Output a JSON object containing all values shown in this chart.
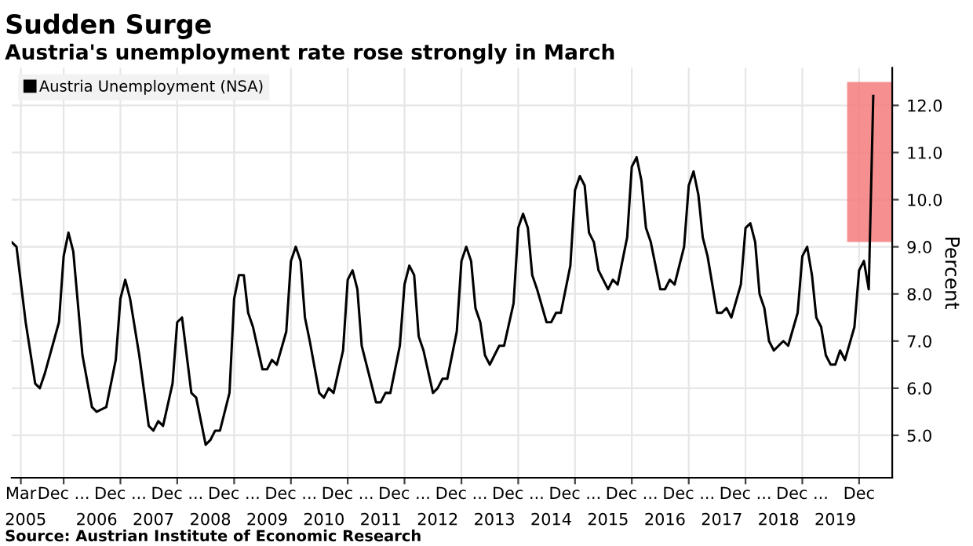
{
  "chart_data": {
    "type": "line",
    "title": "Sudden Surge",
    "subtitle": "Austria's unemployment rate rose strongly in March",
    "ylabel": "Percent",
    "annotations": [
      "Source: Austrian Institute of Economic Research"
    ],
    "series": [
      {
        "name": "Austria Unemployment (NSA)",
        "color": "#000000",
        "x": [
          "2005-01",
          "2005-02",
          "2005-04",
          "2005-06",
          "2005-07",
          "2005-08",
          "2005-11",
          "2005-12",
          "2006-01",
          "2006-02",
          "2006-04",
          "2006-06",
          "2006-07",
          "2006-09",
          "2006-11",
          "2006-12",
          "2007-01",
          "2007-02",
          "2007-04",
          "2007-06",
          "2007-07",
          "2007-08",
          "2007-09",
          "2007-11",
          "2007-12",
          "2008-01",
          "2008-03",
          "2008-04",
          "2008-06",
          "2008-07",
          "2008-08",
          "2008-09",
          "2008-11",
          "2008-12",
          "2009-01",
          "2009-02",
          "2009-03",
          "2009-04",
          "2009-06",
          "2009-07",
          "2009-08",
          "2009-09",
          "2009-11",
          "2009-12",
          "2010-01",
          "2010-02",
          "2010-03",
          "2010-04",
          "2010-06",
          "2010-07",
          "2010-08",
          "2010-09",
          "2010-11",
          "2010-12",
          "2011-01",
          "2011-02",
          "2011-03",
          "2011-06",
          "2011-07",
          "2011-08",
          "2011-09",
          "2011-11",
          "2011-12",
          "2012-01",
          "2012-02",
          "2012-03",
          "2012-04",
          "2012-06",
          "2012-07",
          "2012-08",
          "2012-09",
          "2012-11",
          "2012-12",
          "2013-01",
          "2013-02",
          "2013-03",
          "2013-04",
          "2013-05",
          "2013-06",
          "2013-08",
          "2013-09",
          "2013-11",
          "2013-12",
          "2014-01",
          "2014-02",
          "2014-03",
          "2014-04",
          "2014-06",
          "2014-07",
          "2014-08",
          "2014-09",
          "2014-11",
          "2014-12",
          "2015-01",
          "2015-02",
          "2015-03",
          "2015-04",
          "2015-05",
          "2015-07",
          "2015-08",
          "2015-09",
          "2015-11",
          "2015-12",
          "2016-01",
          "2016-02",
          "2016-03",
          "2016-04",
          "2016-06",
          "2016-07",
          "2016-08",
          "2016-09",
          "2016-11",
          "2016-12",
          "2017-01",
          "2017-02",
          "2017-03",
          "2017-04",
          "2017-06",
          "2017-07",
          "2017-08",
          "2017-09",
          "2017-11",
          "2017-12",
          "2018-01",
          "2018-02",
          "2018-03",
          "2018-04",
          "2018-05",
          "2018-06",
          "2018-08",
          "2018-09",
          "2018-11",
          "2018-12",
          "2019-01",
          "2019-02",
          "2019-03",
          "2019-04",
          "2019-05",
          "2019-06",
          "2019-07",
          "2019-08",
          "2019-09",
          "2019-11",
          "2019-12",
          "2020-01",
          "2020-02",
          "2020-03"
        ],
        "values": [
          9.1,
          9.0,
          7.4,
          6.1,
          6.0,
          6.3,
          7.4,
          8.8,
          9.3,
          8.9,
          6.7,
          5.6,
          5.5,
          5.6,
          6.6,
          7.9,
          8.3,
          7.9,
          6.7,
          5.2,
          5.1,
          5.3,
          5.2,
          6.1,
          7.4,
          7.5,
          5.9,
          5.8,
          4.8,
          4.9,
          5.1,
          5.1,
          5.9,
          7.9,
          8.4,
          8.4,
          7.6,
          7.3,
          6.4,
          6.4,
          6.6,
          6.5,
          7.2,
          8.7,
          9.0,
          8.7,
          7.5,
          7.0,
          5.9,
          5.8,
          6.0,
          5.9,
          6.8,
          8.3,
          8.5,
          8.1,
          6.9,
          5.7,
          5.7,
          5.9,
          5.9,
          6.9,
          8.2,
          8.6,
          8.4,
          7.1,
          6.8,
          5.9,
          6.0,
          6.2,
          6.2,
          7.2,
          8.7,
          9.0,
          8.7,
          7.7,
          7.4,
          6.7,
          6.5,
          6.9,
          6.9,
          7.8,
          9.4,
          9.7,
          9.4,
          8.4,
          8.1,
          7.4,
          7.4,
          7.6,
          7.6,
          8.6,
          10.2,
          10.5,
          10.3,
          9.3,
          9.1,
          8.5,
          8.1,
          8.3,
          8.2,
          9.2,
          10.7,
          10.9,
          10.4,
          9.4,
          9.1,
          8.1,
          8.1,
          8.3,
          8.2,
          9.0,
          10.3,
          10.6,
          10.1,
          9.2,
          8.8,
          7.6,
          7.6,
          7.7,
          7.5,
          8.2,
          9.4,
          9.5,
          9.1,
          8.0,
          7.7,
          7.0,
          6.8,
          7.0,
          6.9,
          7.6,
          8.8,
          9.0,
          8.4,
          7.5,
          7.3,
          6.7,
          6.5,
          6.5,
          6.8,
          6.6,
          7.3,
          8.5,
          8.7,
          8.1,
          12.2
        ]
      }
    ],
    "xlim": [
      "2005-01-01",
      "2020-07-01"
    ],
    "xticks": [
      {
        "value": "2005-03-01",
        "label": "Mar"
      },
      {
        "value": "2005-12-01",
        "label": "Dec ..."
      },
      {
        "value": "2006-12-01",
        "label": "Dec ..."
      },
      {
        "value": "2007-12-01",
        "label": "Dec ..."
      },
      {
        "value": "2008-12-01",
        "label": "Dec ..."
      },
      {
        "value": "2009-12-01",
        "label": "Dec ..."
      },
      {
        "value": "2010-12-01",
        "label": "Dec ..."
      },
      {
        "value": "2011-12-01",
        "label": "Dec ..."
      },
      {
        "value": "2012-12-01",
        "label": "Dec ..."
      },
      {
        "value": "2013-12-01",
        "label": "Dec ..."
      },
      {
        "value": "2014-12-01",
        "label": "Dec ..."
      },
      {
        "value": "2015-12-01",
        "label": "Dec ..."
      },
      {
        "value": "2016-12-01",
        "label": "Dec ..."
      },
      {
        "value": "2017-12-01",
        "label": "Dec ..."
      },
      {
        "value": "2018-12-01",
        "label": "Dec ..."
      },
      {
        "value": "2019-12-01",
        "label": "Dec"
      }
    ],
    "x2lim": [
      "2005-01-01",
      "2020-07-01"
    ],
    "x2ticks": [
      {
        "value": "2005-04-01",
        "label": "2005"
      },
      {
        "value": "2006-07-01",
        "label": "2006"
      },
      {
        "value": "2007-07-01",
        "label": "2007"
      },
      {
        "value": "2008-07-01",
        "label": "2008"
      },
      {
        "value": "2009-07-01",
        "label": "2009"
      },
      {
        "value": "2010-07-01",
        "label": "2010"
      },
      {
        "value": "2011-07-01",
        "label": "2011"
      },
      {
        "value": "2012-07-01",
        "label": "2012"
      },
      {
        "value": "2013-07-01",
        "label": "2013"
      },
      {
        "value": "2014-07-01",
        "label": "2014"
      },
      {
        "value": "2015-07-01",
        "label": "2015"
      },
      {
        "value": "2016-07-01",
        "label": "2016"
      },
      {
        "value": "2017-07-01",
        "label": "2017"
      },
      {
        "value": "2018-07-01",
        "label": "2018"
      },
      {
        "value": "2019-07-01",
        "label": "2019"
      }
    ],
    "ylim": [
      4.1,
      12.8
    ],
    "yticks": [
      {
        "value": 5,
        "label": "5.0"
      },
      {
        "value": 6,
        "label": "6.0"
      },
      {
        "value": 7,
        "label": "7.0"
      },
      {
        "value": 8,
        "label": "8.0"
      },
      {
        "value": 9,
        "label": "9.0"
      },
      {
        "value": 10,
        "label": "10.0"
      },
      {
        "value": 11,
        "label": "11.0"
      },
      {
        "value": 12,
        "label": "12.0"
      }
    ],
    "bands": [
      {
        "axis": "x",
        "from": "2019-09-15",
        "to": "2020-07-01",
        "color": "#f47c7c"
      }
    ],
    "grid": true,
    "legend": "top left",
    "marker": "none",
    "line_style": "solid"
  }
}
